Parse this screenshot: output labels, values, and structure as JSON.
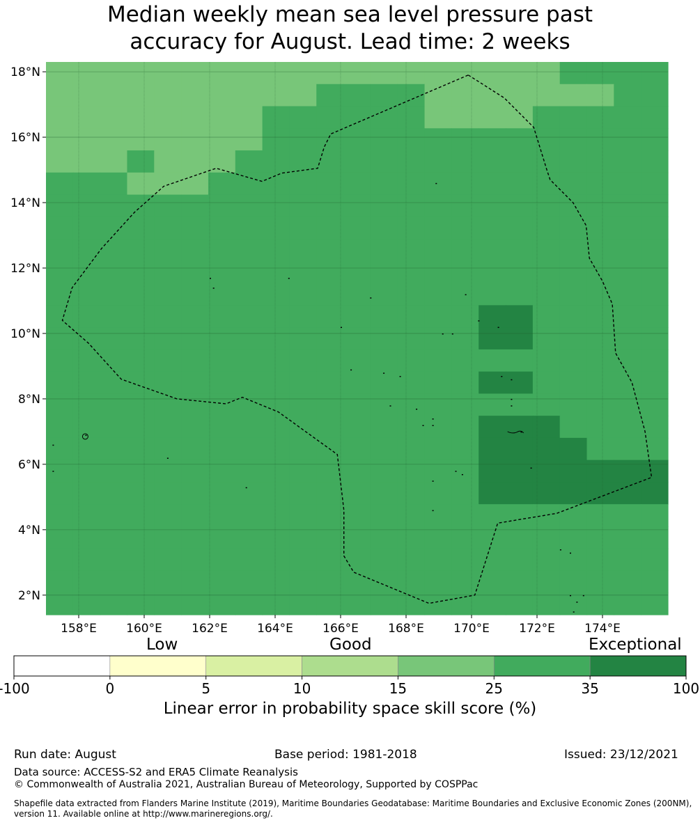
{
  "title_line1": "Median weekly mean sea level pressure past",
  "title_line2": "accuracy for August. Lead time: 2 weeks",
  "map": {
    "lon_range": [
      157,
      176
    ],
    "lat_range": [
      1.4,
      18.3
    ],
    "lon_ticks": [
      "158°E",
      "160°E",
      "162°E",
      "164°E",
      "166°E",
      "168°E",
      "170°E",
      "172°E",
      "174°E"
    ],
    "lon_tick_values": [
      158,
      160,
      162,
      164,
      166,
      168,
      170,
      172,
      174
    ],
    "lat_ticks": [
      "2°N",
      "4°N",
      "6°N",
      "8°N",
      "10°N",
      "12°N",
      "14°N",
      "16°N",
      "18°N"
    ],
    "lat_tick_values": [
      2,
      4,
      6,
      8,
      10,
      12,
      14,
      16,
      18
    ],
    "colors": {
      "1": "#78c679",
      "2": "#41ab5d",
      "3": "#238443"
    },
    "grid_rows": [
      "11111111111111111112222",
      "11111111112222111111122",
      "11111111222222111122222",
      "11111111222222222222222",
      "11121112222222222222222",
      "22211122222222222222222",
      "22222222222222222222222",
      "22222222222222222222222",
      "22222222222222222222222",
      "22222222222222222222222",
      "22222222222222222222222",
      "22222222222222223322222",
      "22222222222222223322222",
      "22222222222222222222222",
      "22222222222222223322222",
      "22222222222222222222222",
      "22222222222222223332222",
      "22222222222222223333222",
      "22222222222222223333333",
      "22222222222222223333333",
      "22222222222222222222222",
      "22222222222222222222222",
      "22222222222222222222222",
      "22222222222222222222222",
      "22222222222222222222222"
    ],
    "territory_boundary": [
      [
        169.9,
        17.9
      ],
      [
        171.0,
        17.2
      ],
      [
        171.9,
        16.3
      ],
      [
        172.3,
        15.0
      ],
      [
        172.4,
        14.7
      ],
      [
        173.1,
        14.0
      ],
      [
        173.5,
        13.3
      ],
      [
        173.6,
        12.3
      ],
      [
        174.0,
        11.6
      ],
      [
        174.3,
        10.9
      ],
      [
        174.4,
        9.4
      ],
      [
        174.9,
        8.5
      ],
      [
        175.3,
        7.0
      ],
      [
        175.5,
        5.6
      ],
      [
        172.6,
        4.5
      ],
      [
        170.8,
        4.2
      ],
      [
        170.1,
        2.0
      ],
      [
        168.7,
        1.75
      ],
      [
        166.4,
        2.7
      ],
      [
        166.1,
        3.2
      ],
      [
        166.1,
        4.6
      ],
      [
        165.9,
        6.3
      ],
      [
        164.1,
        7.6
      ],
      [
        163.0,
        8.05
      ],
      [
        162.5,
        7.85
      ],
      [
        161.0,
        8.0
      ],
      [
        159.3,
        8.6
      ],
      [
        158.3,
        9.7
      ],
      [
        157.5,
        10.4
      ],
      [
        157.8,
        11.4
      ],
      [
        158.7,
        12.6
      ],
      [
        159.7,
        13.7
      ],
      [
        160.6,
        14.5
      ],
      [
        162.2,
        15.05
      ],
      [
        163.6,
        14.65
      ],
      [
        164.2,
        14.9
      ],
      [
        165.3,
        15.05
      ],
      [
        165.5,
        15.7
      ],
      [
        165.7,
        16.1
      ],
      [
        169.9,
        17.9
      ]
    ]
  },
  "colorbar": {
    "categories": [
      "Low",
      "Good",
      "Exceptional"
    ],
    "ticks": [
      "-100",
      "0",
      "5",
      "10",
      "15",
      "25",
      "35",
      "100"
    ],
    "colors": [
      "#ffffff",
      "#ffffcc",
      "#d9f0a3",
      "#addd8e",
      "#78c679",
      "#41ab5d",
      "#238443"
    ],
    "label": "Linear error in probability space skill score (%)"
  },
  "footer": {
    "run_date": "Run date: August",
    "base_period": "Base period: 1981-2018",
    "issued": "Issued: 23/12/2021",
    "data_source": "Data source: ACCESS-S2 and ERA5 Climate Reanalysis",
    "copyright": "© Commonwealth of Australia 2021, Australian Bureau of Meteorology, Supported by COSPPac",
    "shapefile_line1": "Shapefile data extracted from Flanders Marine Institute (2019), Maritime Boundaries Geodatabase: Maritime Boundaries and Exclusive Economic Zones (200NM),",
    "shapefile_line2": "version 11. Available online at http://www.marineregions.org/."
  }
}
